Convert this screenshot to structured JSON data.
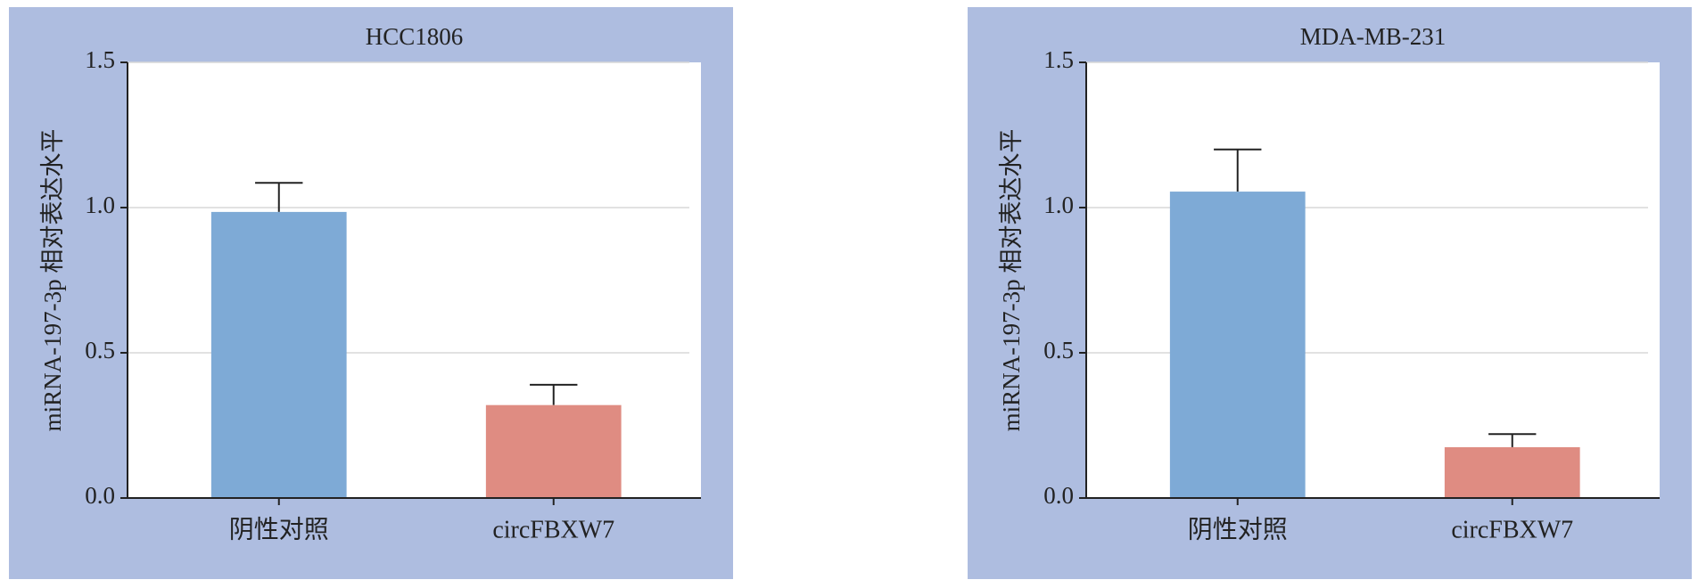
{
  "chart_data": [
    {
      "type": "bar",
      "title": "HCC1806",
      "ylabel": "miRNA-197-3p 相对表达水平",
      "categories": [
        "阴性对照",
        "circFBXW7"
      ],
      "values": [
        0.985,
        0.32
      ],
      "errors": [
        0.1,
        0.07
      ],
      "colors": [
        "#7eaad6",
        "#df8c82"
      ],
      "ylim": [
        0,
        1.5
      ],
      "yticks": [
        {
          "value": 0,
          "label": "0.0"
        },
        0.5,
        {
          "value": 1,
          "label": "1.0"
        },
        1.5
      ],
      "grid": true
    },
    {
      "type": "bar",
      "title": "MDA-MB-231",
      "ylabel": "miRNA-197-3p 相对表达水平",
      "categories": [
        "阴性对照",
        "circFBXW7"
      ],
      "values": [
        1.055,
        0.175
      ],
      "errors": [
        0.145,
        0.045
      ],
      "colors": [
        "#7eaad6",
        "#df8c82"
      ],
      "ylim": [
        0,
        1.5
      ],
      "yticks": [
        {
          "value": 0,
          "label": "0.0"
        },
        0.5,
        {
          "value": 1,
          "label": "1.0"
        },
        1.5
      ],
      "grid": true
    }
  ]
}
